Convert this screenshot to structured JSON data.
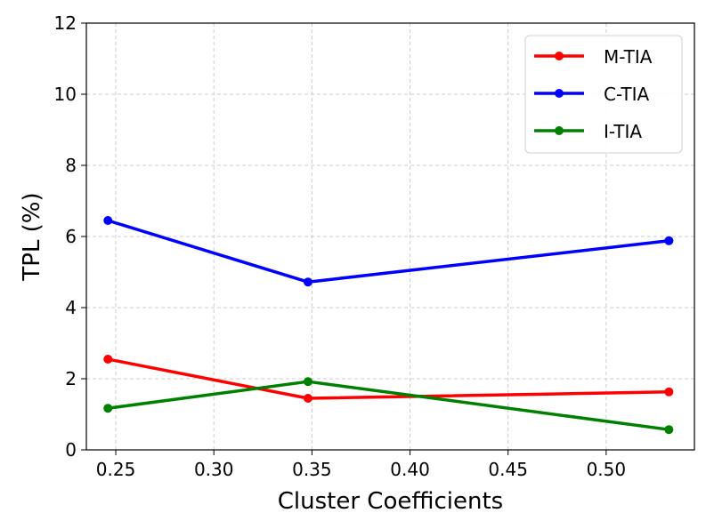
{
  "chart_data": {
    "type": "line",
    "xlabel": "Cluster Coefficients",
    "ylabel": "TPL (%)",
    "xlim": [
      0.235,
      0.545
    ],
    "ylim": [
      0,
      12
    ],
    "xticks": [
      "0.25",
      "0.30",
      "0.35",
      "0.40",
      "0.45",
      "0.50"
    ],
    "xtick_values": [
      0.25,
      0.3,
      0.35,
      0.4,
      0.45,
      0.5
    ],
    "yticks": [
      "0",
      "2",
      "4",
      "6",
      "8",
      "10",
      "12"
    ],
    "ytick_values": [
      0,
      2,
      4,
      6,
      8,
      10,
      12
    ],
    "grid": true,
    "legend_position": "top-right",
    "x": [
      0.246,
      0.348,
      0.532
    ],
    "series": [
      {
        "name": "M-TIA",
        "color": "#ff0000",
        "values": [
          2.55,
          1.45,
          1.63
        ]
      },
      {
        "name": "C-TIA",
        "color": "#0000ff",
        "values": [
          6.45,
          4.72,
          5.88
        ]
      },
      {
        "name": "I-TIA",
        "color": "#008000",
        "values": [
          1.17,
          1.92,
          0.57
        ]
      }
    ]
  }
}
